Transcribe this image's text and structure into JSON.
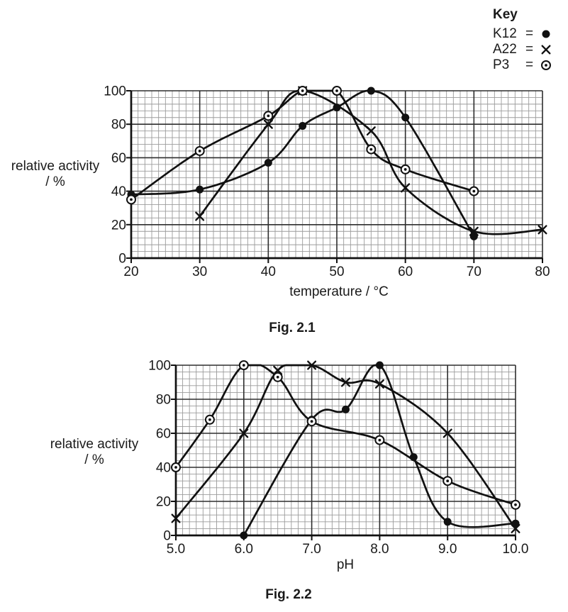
{
  "key": {
    "title": "Key",
    "entries": [
      {
        "label": "K12",
        "eq": "=",
        "marker": "filled-circle"
      },
      {
        "label": "A22",
        "eq": "=",
        "marker": "cross"
      },
      {
        "label": "P3",
        "eq": "=",
        "marker": "circle-dot"
      }
    ]
  },
  "chart_data": [
    {
      "type": "line",
      "title": "Fig. 2.1",
      "xlabel": "temperature / °C",
      "ylabel": "relative activity / %",
      "ylabel_lines": [
        "relative activity",
        "/ %"
      ],
      "xlim": [
        20,
        80
      ],
      "ylim": [
        0,
        100
      ],
      "xticks": [
        20,
        30,
        40,
        50,
        60,
        70,
        80
      ],
      "xtick_labels": [
        "20",
        "30",
        "40",
        "50",
        "60",
        "70",
        "80"
      ],
      "yticks": [
        0,
        20,
        40,
        60,
        80,
        100
      ],
      "ytick_labels": [
        "0",
        "20",
        "40",
        "60",
        "80",
        "100"
      ],
      "grid": "graph paper: minor step 1 °C horizontally, 4 % vertically; dark lines at labelled ticks",
      "legend_position": "key box top-right of page",
      "series": [
        {
          "name": "K12",
          "marker": "filled-circle",
          "points": [
            [
              20,
              38
            ],
            [
              30,
              41
            ],
            [
              40,
              57
            ],
            [
              45,
              79
            ],
            [
              50,
              90
            ],
            [
              55,
              100
            ],
            [
              60,
              84
            ],
            [
              70,
              13
            ]
          ]
        },
        {
          "name": "A22",
          "marker": "cross",
          "points": [
            [
              30,
              25
            ],
            [
              40,
              80
            ],
            [
              45,
              100
            ],
            [
              55,
              76
            ],
            [
              60,
              42
            ],
            [
              70,
              16
            ],
            [
              80,
              17
            ]
          ]
        },
        {
          "name": "P3",
          "marker": "circle-dot",
          "points": [
            [
              20,
              35
            ],
            [
              30,
              64
            ],
            [
              40,
              85
            ],
            [
              45,
              100
            ],
            [
              50,
              100
            ],
            [
              55,
              65
            ],
            [
              60,
              53
            ],
            [
              70,
              40
            ]
          ]
        }
      ]
    },
    {
      "type": "line",
      "title": "Fig. 2.2",
      "xlabel": "pH",
      "ylabel": "relative activity / %",
      "ylabel_lines": [
        "relative activity",
        "/ %"
      ],
      "xlim": [
        5,
        10
      ],
      "ylim": [
        0,
        100
      ],
      "xticks": [
        5,
        6,
        7,
        8,
        9,
        10
      ],
      "xtick_labels": [
        "5.0",
        "6.0",
        "7.0",
        "8.0",
        "9.0",
        "10.0"
      ],
      "yticks": [
        0,
        20,
        40,
        60,
        80,
        100
      ],
      "ytick_labels": [
        "0",
        "20",
        "40",
        "60",
        "80",
        "100"
      ],
      "grid": "graph paper: minor step 0.1 pH horizontally, 4 % vertically; dark lines at labelled ticks",
      "legend_position": "key box top-right of page",
      "series": [
        {
          "name": "K12",
          "marker": "filled-circle",
          "points": [
            [
              6,
              0
            ],
            [
              7,
              68
            ],
            [
              7.5,
              74
            ],
            [
              8,
              100
            ],
            [
              8.5,
              46
            ],
            [
              9,
              8
            ],
            [
              10,
              7
            ]
          ]
        },
        {
          "name": "A22",
          "marker": "cross",
          "points": [
            [
              5,
              10
            ],
            [
              6,
              60
            ],
            [
              6.5,
              97
            ],
            [
              7,
              100
            ],
            [
              7.5,
              90
            ],
            [
              8,
              89
            ],
            [
              9,
              60
            ],
            [
              10,
              4
            ]
          ]
        },
        {
          "name": "P3",
          "marker": "circle-dot",
          "points": [
            [
              5,
              40
            ],
            [
              5.5,
              68
            ],
            [
              6,
              100
            ],
            [
              6.5,
              93
            ],
            [
              7,
              67
            ],
            [
              8,
              56
            ],
            [
              9,
              32
            ],
            [
              10,
              18
            ]
          ]
        }
      ]
    }
  ],
  "colors": {
    "curve": "#111111",
    "grid_minor": "#9b9b9b",
    "grid_major": "#2e2e2e",
    "text": "#1a1a1a",
    "background": "#ffffff"
  }
}
